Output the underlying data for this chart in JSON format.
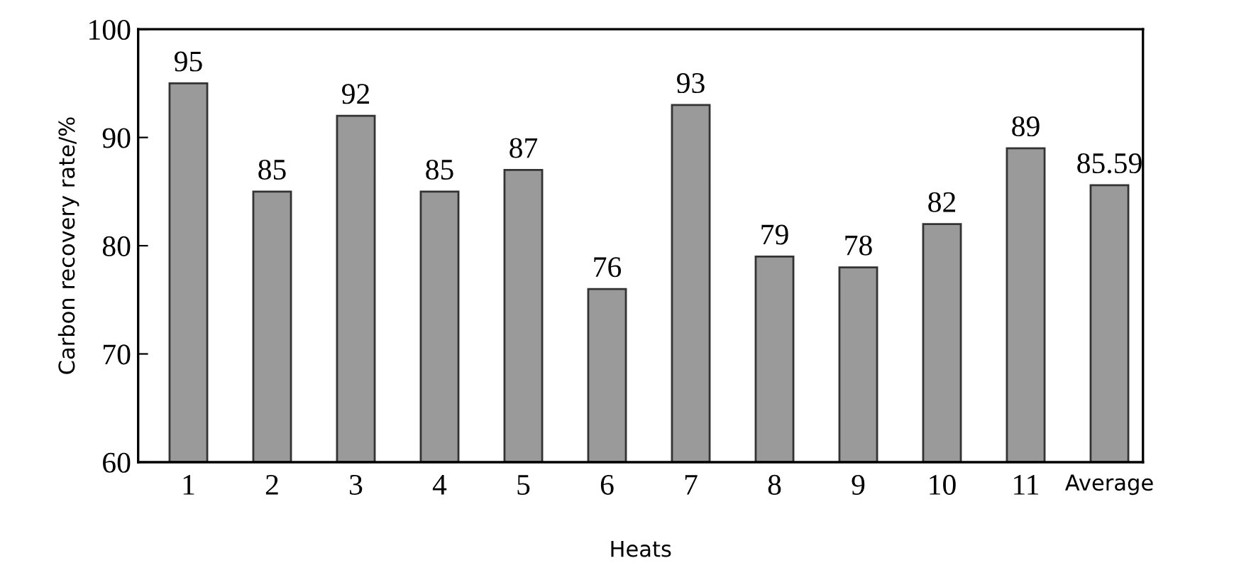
{
  "chart_data": {
    "type": "bar",
    "xlabel": "Heats",
    "ylabel": "Carbon recovery rate/%",
    "categories": [
      "1",
      "2",
      "3",
      "4",
      "5",
      "6",
      "7",
      "8",
      "9",
      "10",
      "11",
      "Average"
    ],
    "values": [
      95,
      85,
      92,
      85,
      87,
      76,
      93,
      79,
      78,
      82,
      89,
      85.59
    ],
    "color": "#9a9a9a",
    "ylim": [
      60,
      100
    ],
    "yticks": [
      60,
      70,
      80,
      90,
      100
    ],
    "grid": false,
    "data_labels": true
  }
}
